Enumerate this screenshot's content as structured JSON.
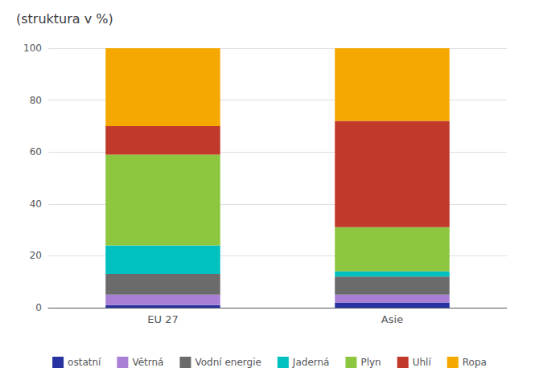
{
  "chart_data": {
    "type": "bar",
    "title": "(struktura v %)",
    "categories": [
      "EU 27",
      "Asie"
    ],
    "series": [
      {
        "name": "ostatní",
        "color": "#2832a0",
        "values": [
          1,
          2
        ]
      },
      {
        "name": "Větrná",
        "color": "#a87fd4",
        "values": [
          4,
          3
        ]
      },
      {
        "name": "Vodní energie",
        "color": "#6b6b6b",
        "values": [
          8,
          7
        ]
      },
      {
        "name": "Jaderná",
        "color": "#00c0c0",
        "values": [
          11,
          2
        ]
      },
      {
        "name": "Plyn",
        "color": "#8dc63f",
        "values": [
          35,
          17
        ]
      },
      {
        "name": "Uhlí",
        "color": "#c0392b",
        "values": [
          11,
          41
        ]
      },
      {
        "name": "Ropa",
        "color": "#f5a800",
        "values": [
          30,
          28
        ]
      }
    ],
    "stacked": true,
    "ylim": [
      0,
      100
    ],
    "yticks": [
      0,
      20,
      40,
      60,
      80,
      100
    ],
    "grid": true,
    "legend": "bottom"
  }
}
